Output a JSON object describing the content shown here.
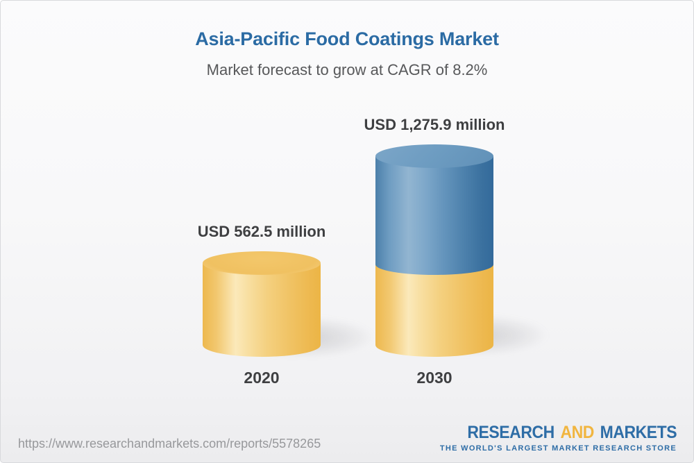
{
  "header": {
    "title": "Asia-Pacific Food Coatings Market",
    "subtitle": "Market forecast to grow at CAGR of 8.2%"
  },
  "chart_data": {
    "type": "bar",
    "variant": "3d-cylinder-columns",
    "title": "Asia-Pacific Food Coatings Market",
    "subtitle": "Market forecast to grow at CAGR of 8.2%",
    "cagr_percent": 8.2,
    "unit": "USD million",
    "categories": [
      "2020",
      "2030"
    ],
    "values": [
      562.5,
      1275.9
    ],
    "bars": [
      {
        "year": "2020",
        "value": 562.5,
        "label": "USD 562.5 million",
        "segment_colors": [
          "#f2c465"
        ]
      },
      {
        "year": "2030",
        "value": 1275.9,
        "label": "USD 1,275.9 million",
        "segment_colors": [
          "#f2c465",
          "#5587b2"
        ]
      }
    ],
    "colors": {
      "base_yellow": "#f2c465",
      "growth_blue": "#5587b2",
      "label_text": "#3e3f41",
      "title_blue": "#2b6ba4"
    },
    "legend": "none",
    "grid": "off",
    "axes": "none"
  },
  "footer": {
    "url": "https://www.researchandmarkets.com/reports/5578265",
    "logo": {
      "part1": "RESEARCH",
      "part2": "AND",
      "part3": "MARKETS",
      "tagline": "THE WORLD'S LARGEST MARKET RESEARCH STORE",
      "blue": "#2e6da6",
      "gold": "#f1b53f"
    }
  }
}
